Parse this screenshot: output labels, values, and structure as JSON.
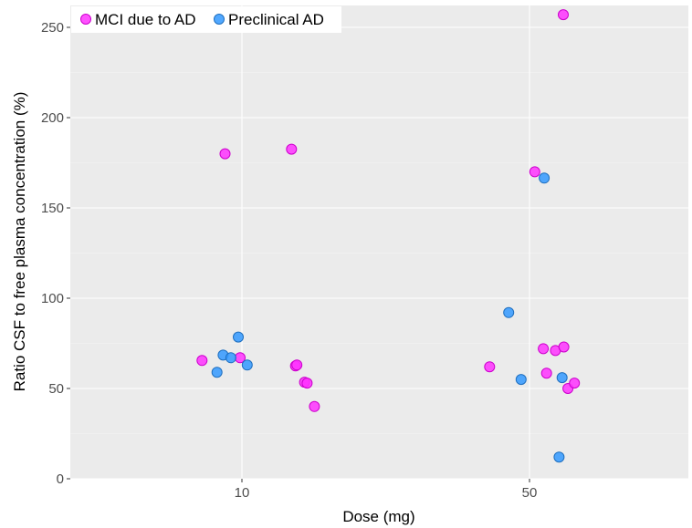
{
  "chart_data": {
    "type": "scatter",
    "xlabel": "Dose (mg)",
    "ylabel": "Ratio CSF to free plasma concentration (%)",
    "x_scale": "log",
    "xlim": [
      5,
      100
    ],
    "ylim": [
      0,
      260
    ],
    "x_ticks": [
      10,
      50
    ],
    "y_ticks": [
      0,
      50,
      100,
      150,
      200,
      250
    ],
    "grid": true,
    "legend_position": "top-left",
    "series": [
      {
        "name": "MCI due to AD",
        "color": "#ff33ff",
        "points": [
          [
            8.0,
            65.5
          ],
          [
            9.1,
            180
          ],
          [
            9.9,
            67
          ],
          [
            13.2,
            182.5
          ],
          [
            13.5,
            62.5
          ],
          [
            13.6,
            63
          ],
          [
            14.2,
            53.5
          ],
          [
            14.4,
            53
          ],
          [
            15.0,
            40
          ],
          [
            40.0,
            62
          ],
          [
            51.5,
            170
          ],
          [
            54.0,
            72
          ],
          [
            55.0,
            58.5
          ],
          [
            57.8,
            71
          ],
          [
            60.6,
            73
          ],
          [
            62.0,
            50
          ],
          [
            64.3,
            53
          ],
          [
            60.4,
            257
          ]
        ]
      },
      {
        "name": "Preclinical AD",
        "color": "#3399ff",
        "points": [
          [
            8.7,
            59
          ],
          [
            9.0,
            68.5
          ],
          [
            9.4,
            67
          ],
          [
            9.8,
            78.5
          ],
          [
            10.3,
            63
          ],
          [
            44.5,
            92
          ],
          [
            47.7,
            55
          ],
          [
            54.3,
            166.5
          ],
          [
            59.0,
            12
          ],
          [
            60.0,
            56
          ]
        ]
      }
    ]
  }
}
